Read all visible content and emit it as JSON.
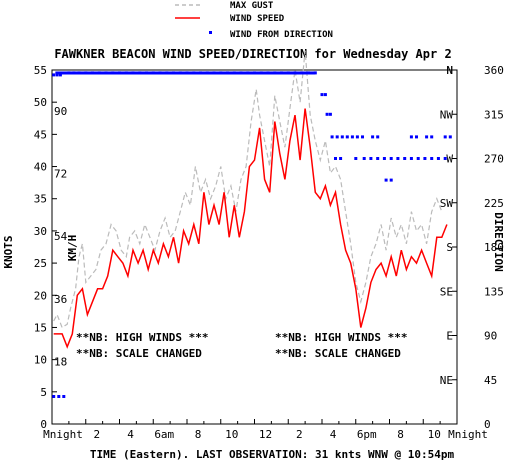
{
  "title": "FAWKNER BEACON WIND SPEED/DIRECTION for Wednesday Apr 2",
  "legend": {
    "max_gust": "MAX GUST",
    "wind_speed": "WIND SPEED",
    "wind_dir": "WIND FROM DIRECTION"
  },
  "axes": {
    "x_label": "TIME (Eastern). LAST OBSERVATION: 31 knts WNW @ 10:54pm",
    "y_left_label": "KNOTS",
    "y_left_inner_label": "KM/H",
    "y_right_label": "DIRECTION"
  },
  "notes": {
    "left_line1": "**NB: HIGH WINDS ***",
    "left_line2": "**NB: SCALE CHANGED",
    "right_line1": "**NB: HIGH WINDS ***",
    "right_line2": "**NB: SCALE CHANGED"
  },
  "colors": {
    "gust": "#bbbbbb",
    "speed": "#ff0000",
    "direction": "#0000ff",
    "axis": "#000000"
  },
  "chart_data": {
    "type": "line",
    "title": "FAWKNER BEACON WIND SPEED/DIRECTION for Wednesday Apr 2",
    "xlabel": "TIME (Eastern). LAST OBSERVATION: 31 knts WNW @ 10:54pm",
    "ylabel": "KNOTS",
    "x_range_hours": [
      0,
      24
    ],
    "x_ticks": [
      {
        "h": 0,
        "label": "Mnight"
      },
      {
        "h": 2,
        "label": "2"
      },
      {
        "h": 4,
        "label": "4"
      },
      {
        "h": 6,
        "label": "6am"
      },
      {
        "h": 8,
        "label": "8"
      },
      {
        "h": 10,
        "label": "10"
      },
      {
        "h": 12,
        "label": "12"
      },
      {
        "h": 14,
        "label": "2"
      },
      {
        "h": 16,
        "label": "4"
      },
      {
        "h": 18,
        "label": "6pm"
      },
      {
        "h": 20,
        "label": "8"
      },
      {
        "h": 22,
        "label": "10"
      },
      {
        "h": 24,
        "label": "Mnight"
      }
    ],
    "y_range_knots": [
      0,
      55
    ],
    "knots_ticks": [
      "0",
      "5",
      "10",
      "15",
      "20",
      "25",
      "30",
      "35",
      "40",
      "45",
      "50",
      "55"
    ],
    "kmh_ticks": [
      {
        "knots": 9.7,
        "label": "18"
      },
      {
        "knots": 19.4,
        "label": "36"
      },
      {
        "knots": 29.2,
        "label": "54"
      },
      {
        "knots": 38.9,
        "label": "72"
      },
      {
        "knots": 48.6,
        "label": "90"
      }
    ],
    "direction_range_deg": [
      0,
      360
    ],
    "direction_ticks": [
      {
        "deg": 0,
        "label": "0",
        "compass": ""
      },
      {
        "deg": 45,
        "label": "45",
        "compass": "NE"
      },
      {
        "deg": 90,
        "label": "90",
        "compass": "E"
      },
      {
        "deg": 135,
        "label": "135",
        "compass": "SE"
      },
      {
        "deg": 180,
        "label": "180",
        "compass": "S"
      },
      {
        "deg": 225,
        "label": "225",
        "compass": "SW"
      },
      {
        "deg": 270,
        "label": "270",
        "compass": "W"
      },
      {
        "deg": 315,
        "label": "315",
        "compass": "NW"
      },
      {
        "deg": 360,
        "label": "360",
        "compass": "N"
      }
    ],
    "series": [
      {
        "name": "MAX GUST",
        "values": [
          [
            0.1,
            16
          ],
          [
            0.3,
            17
          ],
          [
            0.6,
            15
          ],
          [
            0.9,
            15.5
          ],
          [
            1.1,
            18
          ],
          [
            1.4,
            21
          ],
          [
            1.6,
            26
          ],
          [
            1.8,
            28
          ],
          [
            2.0,
            22
          ],
          [
            2.3,
            23
          ],
          [
            2.6,
            24
          ],
          [
            2.9,
            27
          ],
          [
            3.2,
            28
          ],
          [
            3.5,
            31
          ],
          [
            3.8,
            30
          ],
          [
            4.1,
            27
          ],
          [
            4.4,
            26
          ],
          [
            4.6,
            29
          ],
          [
            4.9,
            30
          ],
          [
            5.2,
            28
          ],
          [
            5.5,
            31
          ],
          [
            5.8,
            29
          ],
          [
            6.1,
            27
          ],
          [
            6.4,
            30
          ],
          [
            6.7,
            32
          ],
          [
            7.0,
            29
          ],
          [
            7.3,
            30
          ],
          [
            7.6,
            33
          ],
          [
            7.9,
            36
          ],
          [
            8.2,
            34
          ],
          [
            8.5,
            40
          ],
          [
            8.8,
            36
          ],
          [
            9.1,
            38
          ],
          [
            9.4,
            35
          ],
          [
            9.7,
            37
          ],
          [
            10.0,
            40
          ],
          [
            10.3,
            35
          ],
          [
            10.6,
            37
          ],
          [
            10.9,
            33
          ],
          [
            11.2,
            38
          ],
          [
            11.5,
            40
          ],
          [
            11.8,
            47
          ],
          [
            12.1,
            52
          ],
          [
            12.3,
            48
          ],
          [
            12.6,
            44
          ],
          [
            12.9,
            40
          ],
          [
            13.2,
            51
          ],
          [
            13.5,
            47
          ],
          [
            13.8,
            43
          ],
          [
            14.1,
            49
          ],
          [
            14.4,
            55
          ],
          [
            14.7,
            50
          ],
          [
            15.0,
            58
          ],
          [
            15.3,
            48
          ],
          [
            15.6,
            44
          ],
          [
            15.9,
            41
          ],
          [
            16.2,
            44
          ],
          [
            16.5,
            39
          ],
          [
            16.8,
            40
          ],
          [
            17.1,
            38
          ],
          [
            17.4,
            33
          ],
          [
            17.7,
            28
          ],
          [
            18.0,
            22
          ],
          [
            18.3,
            19
          ],
          [
            18.6,
            22
          ],
          [
            18.9,
            26
          ],
          [
            19.2,
            28
          ],
          [
            19.5,
            31
          ],
          [
            19.8,
            27
          ],
          [
            20.1,
            32
          ],
          [
            20.4,
            29
          ],
          [
            20.7,
            31
          ],
          [
            21.0,
            28
          ],
          [
            21.3,
            33
          ],
          [
            21.6,
            30
          ],
          [
            21.9,
            31
          ],
          [
            22.2,
            28
          ],
          [
            22.5,
            33
          ],
          [
            22.8,
            35
          ],
          [
            23.1,
            33
          ]
        ]
      },
      {
        "name": "WIND SPEED",
        "values": [
          [
            0.1,
            14
          ],
          [
            0.6,
            14
          ],
          [
            0.9,
            12
          ],
          [
            1.2,
            14
          ],
          [
            1.5,
            20
          ],
          [
            1.8,
            21
          ],
          [
            2.1,
            17
          ],
          [
            2.4,
            19
          ],
          [
            2.7,
            21
          ],
          [
            3.0,
            21
          ],
          [
            3.3,
            23
          ],
          [
            3.6,
            27
          ],
          [
            3.9,
            26
          ],
          [
            4.2,
            25
          ],
          [
            4.5,
            23
          ],
          [
            4.8,
            27
          ],
          [
            5.1,
            25
          ],
          [
            5.4,
            27
          ],
          [
            5.7,
            24
          ],
          [
            6.0,
            27
          ],
          [
            6.3,
            25
          ],
          [
            6.6,
            28
          ],
          [
            6.9,
            26
          ],
          [
            7.2,
            29
          ],
          [
            7.5,
            25
          ],
          [
            7.8,
            30
          ],
          [
            8.1,
            28
          ],
          [
            8.4,
            31
          ],
          [
            8.7,
            28
          ],
          [
            9.0,
            36
          ],
          [
            9.3,
            31
          ],
          [
            9.6,
            34
          ],
          [
            9.9,
            31
          ],
          [
            10.2,
            36
          ],
          [
            10.5,
            29
          ],
          [
            10.8,
            34
          ],
          [
            11.1,
            29
          ],
          [
            11.4,
            33
          ],
          [
            11.7,
            40
          ],
          [
            12.0,
            41
          ],
          [
            12.3,
            46
          ],
          [
            12.6,
            38
          ],
          [
            12.9,
            36
          ],
          [
            13.2,
            47
          ],
          [
            13.5,
            42
          ],
          [
            13.8,
            38
          ],
          [
            14.1,
            44
          ],
          [
            14.4,
            48
          ],
          [
            14.7,
            41
          ],
          [
            15.0,
            49
          ],
          [
            15.3,
            43
          ],
          [
            15.6,
            36
          ],
          [
            15.9,
            35
          ],
          [
            16.2,
            37
          ],
          [
            16.5,
            34
          ],
          [
            16.8,
            36
          ],
          [
            17.1,
            31
          ],
          [
            17.4,
            27
          ],
          [
            17.7,
            25
          ],
          [
            18.0,
            21
          ],
          [
            18.3,
            15
          ],
          [
            18.6,
            18
          ],
          [
            18.9,
            22
          ],
          [
            19.2,
            24
          ],
          [
            19.5,
            25
          ],
          [
            19.8,
            23
          ],
          [
            20.1,
            26
          ],
          [
            20.4,
            23
          ],
          [
            20.7,
            27
          ],
          [
            21.0,
            24
          ],
          [
            21.3,
            26
          ],
          [
            21.6,
            25
          ],
          [
            21.9,
            27
          ],
          [
            22.2,
            25
          ],
          [
            22.5,
            23
          ],
          [
            22.8,
            29
          ],
          [
            23.1,
            29
          ],
          [
            23.4,
            31
          ]
        ]
      },
      {
        "name": "WIND FROM DIRECTION",
        "values": [
          [
            0.1,
            28
          ],
          [
            0.4,
            28
          ],
          [
            0.7,
            28
          ],
          [
            0.1,
            355
          ],
          [
            0.3,
            355
          ],
          [
            0.5,
            355
          ],
          [
            1.0,
            357
          ],
          [
            1.3,
            357
          ],
          [
            1.6,
            357
          ],
          [
            2.0,
            357
          ],
          [
            2.4,
            357
          ],
          [
            2.8,
            357
          ],
          [
            3.2,
            357
          ],
          [
            3.6,
            357
          ],
          [
            4.0,
            357
          ],
          [
            4.4,
            357
          ],
          [
            4.8,
            357
          ],
          [
            5.2,
            357
          ],
          [
            5.6,
            357
          ],
          [
            6.0,
            357
          ],
          [
            6.4,
            357
          ],
          [
            6.8,
            357
          ],
          [
            7.2,
            357
          ],
          [
            7.6,
            357
          ],
          [
            8.0,
            357
          ],
          [
            8.4,
            357
          ],
          [
            8.8,
            357
          ],
          [
            9.2,
            357
          ],
          [
            9.6,
            357
          ],
          [
            10.0,
            357
          ],
          [
            10.4,
            357
          ],
          [
            10.8,
            357
          ],
          [
            11.2,
            357
          ],
          [
            11.6,
            357
          ],
          [
            12.0,
            357
          ],
          [
            12.4,
            357
          ],
          [
            12.8,
            357
          ],
          [
            13.2,
            357
          ],
          [
            13.6,
            357
          ],
          [
            14.0,
            357
          ],
          [
            14.4,
            357
          ],
          [
            14.8,
            357
          ],
          [
            15.2,
            357
          ],
          [
            15.6,
            357
          ],
          [
            16.0,
            335
          ],
          [
            16.2,
            335
          ],
          [
            16.3,
            315
          ],
          [
            16.5,
            315
          ],
          [
            16.6,
            292
          ],
          [
            16.9,
            292
          ],
          [
            17.2,
            292
          ],
          [
            17.5,
            292
          ],
          [
            17.8,
            292
          ],
          [
            18.1,
            292
          ],
          [
            18.4,
            292
          ],
          [
            18.0,
            270
          ],
          [
            18.5,
            270
          ],
          [
            18.9,
            270
          ],
          [
            19.3,
            270
          ],
          [
            19.7,
            270
          ],
          [
            20.1,
            270
          ],
          [
            20.5,
            270
          ],
          [
            20.9,
            270
          ],
          [
            21.3,
            270
          ],
          [
            21.7,
            270
          ],
          [
            22.1,
            270
          ],
          [
            22.5,
            270
          ],
          [
            22.9,
            270
          ],
          [
            23.3,
            270
          ],
          [
            19.8,
            248
          ],
          [
            20.1,
            248
          ],
          [
            21.3,
            292
          ],
          [
            21.6,
            292
          ],
          [
            22.2,
            292
          ],
          [
            22.5,
            292
          ],
          [
            23.3,
            292
          ],
          [
            23.6,
            292
          ],
          [
            19.0,
            292
          ],
          [
            19.3,
            292
          ],
          [
            16.8,
            270
          ],
          [
            17.1,
            270
          ]
        ]
      }
    ]
  }
}
